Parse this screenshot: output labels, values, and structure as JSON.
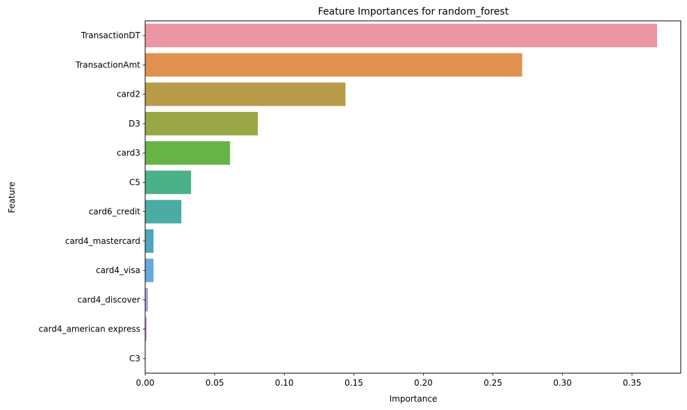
{
  "chart_data": {
    "type": "bar",
    "orientation": "horizontal",
    "title": "Feature Importances for random_forest",
    "xlabel": "Importance",
    "ylabel": "Feature",
    "xlim": [
      0,
      0.385
    ],
    "xticks": [
      0.0,
      0.05,
      0.1,
      0.15,
      0.2,
      0.25,
      0.3,
      0.35
    ],
    "xtick_labels": [
      "0.00",
      "0.05",
      "0.10",
      "0.15",
      "0.20",
      "0.25",
      "0.30",
      "0.35"
    ],
    "grid": false,
    "categories": [
      "TransactionDT",
      "TransactionAmt",
      "card2",
      "D3",
      "card3",
      "C5",
      "card6_credit",
      "card4_mastercard",
      "card4_visa",
      "card4_discover",
      "card4_american express",
      "C3"
    ],
    "values": [
      0.368,
      0.271,
      0.144,
      0.081,
      0.061,
      0.033,
      0.026,
      0.006,
      0.006,
      0.002,
      0.001,
      0.0
    ],
    "colors": [
      "#ea96a3",
      "#e1914f",
      "#b89b49",
      "#9aa746",
      "#67b348",
      "#4bb188",
      "#4aaca2",
      "#4da6ba",
      "#66a9dc",
      "#a8a2e3",
      "#c495dd",
      "#e68ac4"
    ]
  }
}
